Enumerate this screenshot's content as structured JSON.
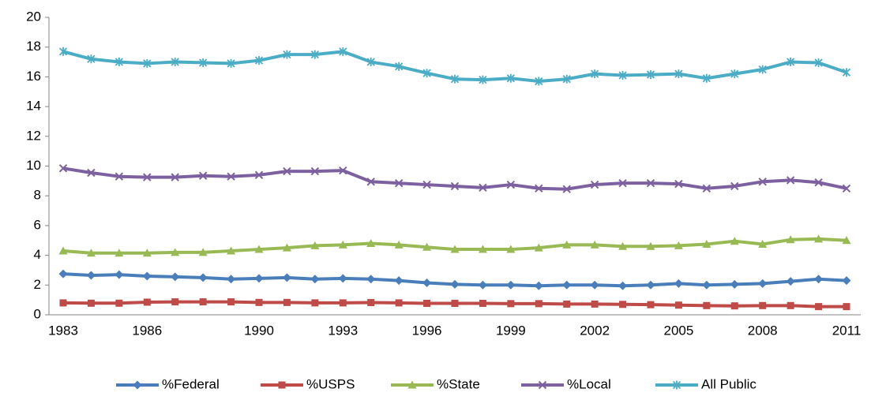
{
  "chart_data": {
    "type": "line",
    "categories": [
      "1983",
      null,
      null,
      "1986",
      null,
      null,
      null,
      "1990",
      null,
      null,
      "1993",
      null,
      null,
      "1996",
      null,
      null,
      "1999",
      null,
      null,
      "2002",
      null,
      null,
      "2005",
      null,
      null,
      "2008",
      null,
      null,
      "2011"
    ],
    "series": [
      {
        "name": "%Federal",
        "color": "#4a7ebb",
        "marker": "diamond",
        "values": [
          2.75,
          2.65,
          2.7,
          2.6,
          2.55,
          2.5,
          2.4,
          2.45,
          2.5,
          2.4,
          2.45,
          2.4,
          2.3,
          2.15,
          2.05,
          2.0,
          2.0,
          1.95,
          2.0,
          2.0,
          1.95,
          2.0,
          2.1,
          2.0,
          2.05,
          2.1,
          2.25,
          2.4,
          2.3
        ]
      },
      {
        "name": "%USPS",
        "color": "#be4b48",
        "marker": "square",
        "values": [
          0.8,
          0.78,
          0.78,
          0.85,
          0.87,
          0.87,
          0.87,
          0.83,
          0.83,
          0.8,
          0.8,
          0.82,
          0.8,
          0.77,
          0.77,
          0.77,
          0.75,
          0.75,
          0.72,
          0.72,
          0.7,
          0.68,
          0.65,
          0.62,
          0.6,
          0.62,
          0.62,
          0.55,
          0.55
        ]
      },
      {
        "name": "%State",
        "color": "#98b954",
        "marker": "triangle",
        "values": [
          4.3,
          4.15,
          4.15,
          4.15,
          4.2,
          4.2,
          4.3,
          4.4,
          4.5,
          4.65,
          4.7,
          4.8,
          4.7,
          4.55,
          4.4,
          4.4,
          4.4,
          4.5,
          4.7,
          4.7,
          4.6,
          4.6,
          4.65,
          4.75,
          4.95,
          4.75,
          5.05,
          5.1,
          5.0
        ]
      },
      {
        "name": "%Local",
        "color": "#7d60a0",
        "marker": "x",
        "values": [
          9.85,
          9.55,
          9.3,
          9.25,
          9.25,
          9.35,
          9.3,
          9.4,
          9.65,
          9.65,
          9.7,
          8.95,
          8.85,
          8.75,
          8.65,
          8.55,
          8.75,
          8.5,
          8.45,
          8.75,
          8.85,
          8.85,
          8.8,
          8.5,
          8.65,
          8.95,
          9.05,
          8.9,
          8.5
        ]
      },
      {
        "name": "All Public",
        "color": "#4bacc6",
        "marker": "asterisk",
        "values": [
          17.7,
          17.2,
          17.0,
          16.9,
          17.0,
          16.95,
          16.9,
          17.1,
          17.5,
          17.5,
          17.7,
          17.0,
          16.7,
          16.25,
          15.85,
          15.8,
          15.9,
          15.7,
          15.85,
          16.2,
          16.1,
          16.15,
          16.2,
          15.9,
          16.2,
          16.5,
          17.0,
          16.95,
          16.3
        ]
      }
    ],
    "ylim": [
      0,
      20
    ],
    "yticks": [
      0,
      2,
      4,
      6,
      8,
      10,
      12,
      14,
      16,
      18,
      20
    ],
    "grid": false,
    "legend": "bottom"
  }
}
